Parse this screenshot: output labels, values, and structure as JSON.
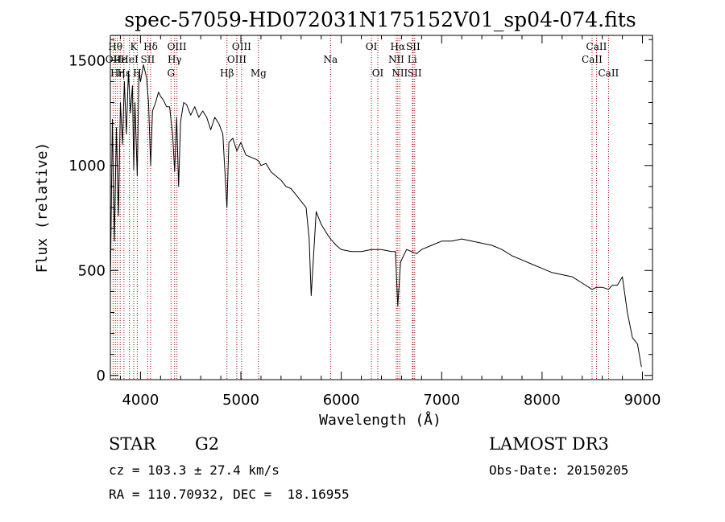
{
  "chart_data": {
    "type": "line",
    "title": "spec-57059-HD072031N175152V01_sp04-074.fits",
    "xlabel": "Wavelength (Å)",
    "ylabel": "Flux (relative)",
    "xlim": [
      3700,
      9100
    ],
    "ylim": [
      -20,
      1620
    ],
    "x_ticks": [
      4000,
      5000,
      6000,
      7000,
      8000,
      9000
    ],
    "y_ticks": [
      0,
      500,
      1000,
      1500
    ],
    "x_tick_labels": [
      "4000",
      "5000",
      "6000",
      "7000",
      "8000",
      "9000"
    ],
    "y_tick_labels": [
      "0",
      "500",
      "1000",
      "1500"
    ],
    "grid": false,
    "series": [
      {
        "name": "flux",
        "x": [
          3700,
          3720,
          3740,
          3760,
          3780,
          3800,
          3820,
          3840,
          3860,
          3880,
          3900,
          3920,
          3933,
          3945,
          3968,
          3985,
          4000,
          4030,
          4060,
          4080,
          4101,
          4120,
          4150,
          4180,
          4200,
          4230,
          4260,
          4290,
          4320,
          4340,
          4360,
          4380,
          4400,
          4430,
          4460,
          4500,
          4540,
          4580,
          4620,
          4660,
          4700,
          4740,
          4780,
          4820,
          4861,
          4880,
          4920,
          4960,
          5000,
          5050,
          5100,
          5150,
          5180,
          5200,
          5250,
          5300,
          5350,
          5400,
          5450,
          5500,
          5550,
          5600,
          5650,
          5680,
          5700,
          5750,
          5800,
          5850,
          5893,
          5950,
          6000,
          6100,
          6200,
          6300,
          6400,
          6500,
          6540,
          6563,
          6590,
          6650,
          6700,
          6750,
          6800,
          6900,
          7000,
          7100,
          7200,
          7300,
          7400,
          7500,
          7600,
          7700,
          7800,
          7900,
          8000,
          8100,
          8200,
          8300,
          8400,
          8498,
          8542,
          8600,
          8662,
          8700,
          8750,
          8800,
          8850,
          8900,
          8950,
          8990
        ],
        "y": [
          430,
          1220,
          640,
          1180,
          760,
          1300,
          1100,
          1400,
          1150,
          1450,
          1250,
          1380,
          980,
          1300,
          950,
          1450,
          1400,
          1480,
          1420,
          1300,
          1000,
          1260,
          1300,
          1350,
          1330,
          1310,
          1280,
          1280,
          1150,
          970,
          1230,
          900,
          1210,
          1300,
          1290,
          1240,
          1280,
          1230,
          1260,
          1230,
          1170,
          1230,
          1200,
          1150,
          800,
          1110,
          1130,
          1070,
          1110,
          1050,
          1040,
          1030,
          1020,
          1000,
          1010,
          970,
          950,
          930,
          900,
          890,
          860,
          830,
          800,
          650,
          380,
          780,
          720,
          680,
          650,
          620,
          600,
          590,
          590,
          600,
          600,
          590,
          590,
          330,
          540,
          600,
          590,
          580,
          600,
          620,
          640,
          640,
          650,
          640,
          630,
          620,
          600,
          570,
          550,
          530,
          510,
          490,
          480,
          470,
          440,
          410,
          420,
          420,
          410,
          430,
          430,
          470,
          300,
          180,
          150,
          40
        ],
        "color": "#000000"
      }
    ],
    "line_markers": [
      {
        "wavelength": 3727,
        "label": "OII",
        "row": 2
      },
      {
        "wavelength": 3750,
        "label": "Hθ",
        "row": 1
      },
      {
        "wavelength": 3771,
        "label": "Hη",
        "row": 3
      },
      {
        "wavelength": 3798,
        "label": "Hε",
        "row": 2
      },
      {
        "wavelength": 3835,
        "label": "Hε",
        "row": 3
      },
      {
        "wavelength": 3889,
        "label": "HeI",
        "row": 2
      },
      {
        "wavelength": 3933,
        "label": "K",
        "row": 1
      },
      {
        "wavelength": 3968,
        "label": "H",
        "row": 3
      },
      {
        "wavelength": 4072,
        "label": "SII",
        "row": 2
      },
      {
        "wavelength": 4101,
        "label": "Hδ",
        "row": 1
      },
      {
        "wavelength": 4304,
        "label": "G",
        "row": 3
      },
      {
        "wavelength": 4340,
        "label": "Hγ",
        "row": 2
      },
      {
        "wavelength": 4363,
        "label": "OIII",
        "row": 1
      },
      {
        "wavelength": 4861,
        "label": "Hβ",
        "row": 3
      },
      {
        "wavelength": 4959,
        "label": "OIII",
        "row": 2
      },
      {
        "wavelength": 5007,
        "label": "OIII",
        "row": 1
      },
      {
        "wavelength": 5175,
        "label": "Mg",
        "row": 3
      },
      {
        "wavelength": 5893,
        "label": "Na",
        "row": 2
      },
      {
        "wavelength": 6300,
        "label": "OI",
        "row": 1
      },
      {
        "wavelength": 6364,
        "label": "OI",
        "row": 3
      },
      {
        "wavelength": 6548,
        "label": "NII",
        "row": 2
      },
      {
        "wavelength": 6563,
        "label": "Hα",
        "row": 1
      },
      {
        "wavelength": 6583,
        "label": "NII",
        "row": 3
      },
      {
        "wavelength": 6707,
        "label": "Li",
        "row": 2
      },
      {
        "wavelength": 6716,
        "label": "SII",
        "row": 1
      },
      {
        "wavelength": 6731,
        "label": "SII",
        "row": 3
      },
      {
        "wavelength": 8498,
        "label": "CaII",
        "row": 2
      },
      {
        "wavelength": 8542,
        "label": "CaII",
        "row": 1
      },
      {
        "wavelength": 8662,
        "label": "CaII",
        "row": 3
      }
    ]
  },
  "info": {
    "class_label": "STAR",
    "subclass_label": "G2",
    "survey_label": "LAMOST DR3",
    "cz_text": "cz = 103.3 ± 27.4 km/s",
    "obs_date_text": "Obs-Date: 20150205",
    "coords_text": "RA = 110.70932, DEC =  18.16955"
  }
}
